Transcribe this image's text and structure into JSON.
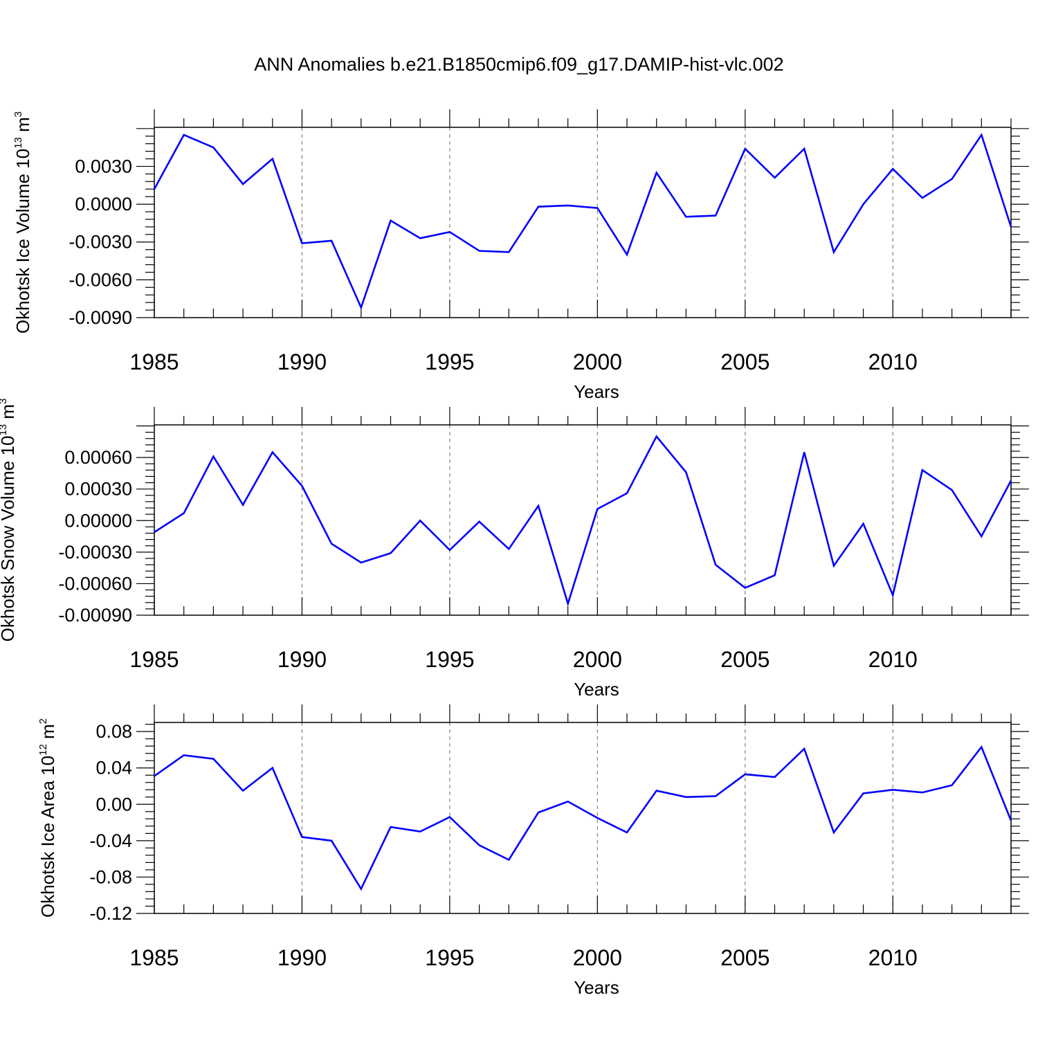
{
  "title": "ANN Anomalies b.e21.B1850cmip6.f09_g17.DAMIP-hist-vlc.002",
  "colors": {
    "series": "#0000ff",
    "axis": "#000000",
    "grid": "#808080"
  },
  "chart_data": [
    {
      "type": "line",
      "ylabel_main": "Okhotsk Ice Volume 10",
      "ylabel_exp": "13",
      "ylabel_unit": " m",
      "ylabel_unit_exp": "3",
      "xlabel": "Years",
      "xlim": [
        1985,
        2014
      ],
      "ylim": [
        -0.009,
        0.0061
      ],
      "ytick_values": [
        0.003,
        0.0,
        -0.003,
        -0.006,
        -0.009
      ],
      "ytick_labels": [
        "0.0030",
        "0.0000",
        "-0.0030",
        "-0.0060",
        "-0.0090"
      ],
      "xtick_values": [
        1985,
        1990,
        1995,
        2000,
        2005,
        2010
      ],
      "xtick_labels": [
        "1985",
        "1990",
        "1995",
        "2000",
        "2005",
        "2010"
      ],
      "x": [
        1985,
        1986,
        1987,
        1988,
        1989,
        1990,
        1991,
        1992,
        1993,
        1994,
        1995,
        1996,
        1997,
        1998,
        1999,
        2000,
        2001,
        2002,
        2003,
        2004,
        2005,
        2006,
        2007,
        2008,
        2009,
        2010,
        2011,
        2012,
        2013,
        2014
      ],
      "values": [
        0.0012,
        0.0055,
        0.0045,
        0.0016,
        0.0036,
        -0.0031,
        -0.0029,
        -0.0082,
        -0.0013,
        -0.0027,
        -0.0022,
        -0.0037,
        -0.0038,
        -0.0002,
        -0.0001,
        -0.0003,
        -0.004,
        0.0025,
        -0.001,
        -0.0009,
        0.0044,
        0.0021,
        0.0044,
        -0.0038,
        0.0,
        0.0028,
        0.0005,
        0.002,
        0.0055,
        -0.0018
      ]
    },
    {
      "type": "line",
      "ylabel_main": "Okhotsk Snow Volume 10",
      "ylabel_exp": "13",
      "ylabel_unit": " m",
      "ylabel_unit_exp": "3",
      "xlabel": "Years",
      "xlim": [
        1985,
        2014
      ],
      "ylim": [
        -0.0009,
        0.00091
      ],
      "ytick_values": [
        0.0006,
        0.0003,
        0.0,
        -0.0003,
        -0.0006,
        -0.0009
      ],
      "ytick_labels": [
        "0.00060",
        "0.00030",
        "0.00000",
        "-0.00030",
        "-0.00060",
        "-0.00090"
      ],
      "xtick_values": [
        1985,
        1990,
        1995,
        2000,
        2005,
        2010
      ],
      "xtick_labels": [
        "1985",
        "1990",
        "1995",
        "2000",
        "2005",
        "2010"
      ],
      "x": [
        1985,
        1986,
        1987,
        1988,
        1989,
        1990,
        1991,
        1992,
        1993,
        1994,
        1995,
        1996,
        1997,
        1998,
        1999,
        2000,
        2001,
        2002,
        2003,
        2004,
        2005,
        2006,
        2007,
        2008,
        2009,
        2010,
        2011,
        2012,
        2013,
        2014
      ],
      "values": [
        -0.00011,
        7e-05,
        0.00061,
        0.00015,
        0.00065,
        0.00033,
        -0.00022,
        -0.0004,
        -0.00031,
        0.0,
        -0.00028,
        -1e-05,
        -0.00027,
        0.00014,
        -0.00079,
        0.00011,
        0.00026,
        0.0008,
        0.00046,
        -0.00042,
        -0.00064,
        -0.00052,
        0.00065,
        -0.00043,
        -3e-05,
        -0.00071,
        0.00048,
        0.00029,
        -0.00015,
        0.00038
      ]
    },
    {
      "type": "line",
      "ylabel_main": "Okhotsk Ice Area 10",
      "ylabel_exp": "12",
      "ylabel_unit": " m",
      "ylabel_unit_exp": "2",
      "xlabel": "Years",
      "xlim": [
        1985,
        2014
      ],
      "ylim": [
        -0.12,
        0.09
      ],
      "ytick_values": [
        0.08,
        0.04,
        0.0,
        -0.04,
        -0.08,
        -0.12
      ],
      "ytick_labels": [
        "0.08",
        "0.04",
        "0.00",
        "-0.04",
        "-0.08",
        "-0.12"
      ],
      "xtick_values": [
        1985,
        1990,
        1995,
        2000,
        2005,
        2010
      ],
      "xtick_labels": [
        "1985",
        "1990",
        "1995",
        "2000",
        "2005",
        "2010"
      ],
      "x": [
        1985,
        1986,
        1987,
        1988,
        1989,
        1990,
        1991,
        1992,
        1993,
        1994,
        1995,
        1996,
        1997,
        1998,
        1999,
        2000,
        2001,
        2002,
        2003,
        2004,
        2005,
        2006,
        2007,
        2008,
        2009,
        2010,
        2011,
        2012,
        2013,
        2014
      ],
      "values": [
        0.031,
        0.054,
        0.05,
        0.015,
        0.04,
        -0.036,
        -0.04,
        -0.093,
        -0.025,
        -0.03,
        -0.014,
        -0.045,
        -0.061,
        -0.009,
        0.003,
        -0.015,
        -0.031,
        0.015,
        0.008,
        0.009,
        0.033,
        0.03,
        0.061,
        -0.031,
        0.012,
        0.016,
        0.013,
        0.021,
        0.063,
        -0.018
      ]
    }
  ]
}
